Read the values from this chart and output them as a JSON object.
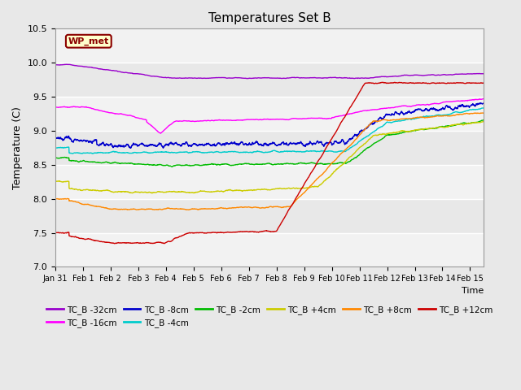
{
  "title": "Temperatures Set B",
  "xlabel": "Time",
  "ylabel": "Temperature (C)",
  "ylim": [
    7.0,
    10.5
  ],
  "xlim": [
    0,
    15.5
  ],
  "date_labels": [
    "Jan 31",
    "Feb 1",
    "Feb 2",
    "Feb 3",
    "Feb 4",
    "Feb 5",
    "Feb 6",
    "Feb 7",
    "Feb 8",
    "Feb 9",
    "Feb 10",
    "Feb 11",
    "Feb 12",
    "Feb 13",
    "Feb 14",
    "Feb 15"
  ],
  "series": [
    {
      "label": "TC_B -32cm",
      "color": "#9900cc"
    },
    {
      "label": "TC_B -16cm",
      "color": "#ff00ff"
    },
    {
      "label": "TC_B -8cm",
      "color": "#0000cc"
    },
    {
      "label": "TC_B -4cm",
      "color": "#00cccc"
    },
    {
      "label": "TC_B -2cm",
      "color": "#00bb00"
    },
    {
      "label": "TC_B +4cm",
      "color": "#cccc00"
    },
    {
      "label": "TC_B +8cm",
      "color": "#ff8800"
    },
    {
      "label": "TC_B +12cm",
      "color": "#cc0000"
    }
  ],
  "wp_met_label": "WP_met",
  "wp_met_facecolor": "#ffffcc",
  "wp_met_edgecolor": "#8b0000",
  "fig_facecolor": "#e8e8e8",
  "ax_facecolor": "#e8e8e8",
  "n_points": 2200
}
